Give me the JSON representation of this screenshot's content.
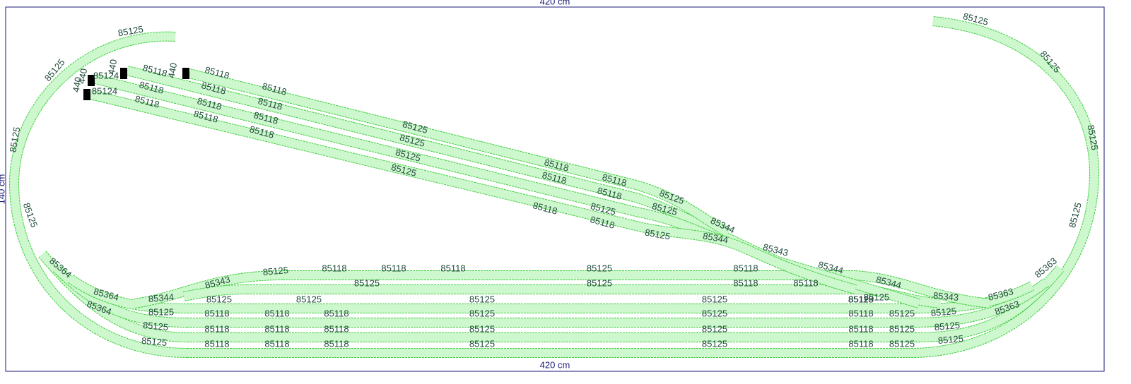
{
  "dimensions": {
    "top": "420 cm",
    "bottom": "420 cm",
    "left": "140 cm"
  },
  "track_labels": [
    "85125",
    "85125",
    "85125",
    "85125",
    "85364",
    "85364",
    "85364",
    "85125",
    "85125",
    "85344",
    "85343",
    "85125",
    "85125",
    "85125",
    "85125",
    "85118",
    "85118",
    "85118",
    "85125",
    "85118",
    "85125",
    "85125",
    "85118",
    "85118",
    "85125",
    "85125",
    "85125",
    "85118",
    "85118",
    "85118",
    "85118",
    "85125",
    "85125",
    "85118",
    "85125",
    "85125",
    "85118",
    "85118",
    "85118",
    "85125",
    "85125",
    "85118",
    "85125",
    "85125",
    "85118",
    "85118",
    "85118",
    "85125",
    "85125",
    "85118",
    "85125",
    "85125",
    "85125",
    "85125",
    "85125",
    "85125",
    "85363",
    "85363",
    "85363",
    "85343",
    "85125",
    "85344",
    "85344",
    "85343",
    "85344",
    "85344",
    "85125",
    "85125",
    "85118",
    "85118",
    "85118",
    "85125",
    "85118",
    "85118",
    "85118",
    "85118",
    "85118",
    "85125",
    "85118",
    "85118",
    "85125",
    "85118",
    "85118",
    "85118",
    "85125",
    "85125",
    "85118",
    "85118",
    "85125",
    "85118",
    "85118",
    "440",
    "440",
    "85124",
    "85124",
    "440",
    "440"
  ]
}
